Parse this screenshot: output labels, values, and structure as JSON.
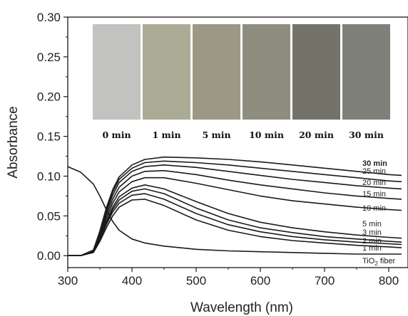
{
  "chart_data": {
    "type": "line",
    "xlabel": "Wavelength (nm)",
    "ylabel": "Absorbance",
    "xlim": [
      300,
      830
    ],
    "ylim": [
      -0.015,
      0.3
    ],
    "x_ticks": [
      300,
      400,
      500,
      600,
      700,
      800
    ],
    "y_ticks": [
      0.0,
      0.05,
      0.1,
      0.15,
      0.2,
      0.25,
      0.3
    ],
    "x_tick_labels": [
      "300",
      "400",
      "500",
      "600",
      "700",
      "800"
    ],
    "y_tick_labels": [
      "0.00",
      "0.05",
      "0.10",
      "0.15",
      "0.20",
      "0.25",
      "0.30"
    ],
    "grid": false,
    "line_color": "#1a1a1a",
    "x": [
      300,
      320,
      340,
      350,
      360,
      370,
      380,
      400,
      420,
      450,
      500,
      550,
      600,
      650,
      700,
      750,
      800,
      820
    ],
    "series": [
      {
        "name": "TiO2 fiber",
        "label_main": "TiO",
        "label_sub": "2",
        "label_tail": " fiber",
        "values": [
          0.112,
          0.105,
          0.09,
          0.075,
          0.058,
          0.043,
          0.032,
          0.021,
          0.016,
          0.012,
          0.008,
          0.006,
          0.005,
          0.004,
          0.003,
          0.002,
          0.002,
          0.002
        ]
      },
      {
        "name": "1 min",
        "label_main": "1 min",
        "values": [
          0.0,
          0.0,
          0.004,
          0.018,
          0.035,
          0.05,
          0.061,
          0.07,
          0.071,
          0.063,
          0.045,
          0.032,
          0.024,
          0.019,
          0.016,
          0.013,
          0.011,
          0.01
        ]
      },
      {
        "name": "2 min",
        "label_main": "2 min",
        "values": [
          0.0,
          0.0,
          0.005,
          0.02,
          0.039,
          0.055,
          0.066,
          0.076,
          0.078,
          0.071,
          0.053,
          0.039,
          0.03,
          0.024,
          0.02,
          0.017,
          0.015,
          0.014
        ]
      },
      {
        "name": "3 min",
        "label_main": "3 min",
        "values": [
          0.0,
          0.0,
          0.005,
          0.021,
          0.041,
          0.058,
          0.07,
          0.081,
          0.084,
          0.078,
          0.06,
          0.045,
          0.035,
          0.029,
          0.024,
          0.021,
          0.018,
          0.017
        ]
      },
      {
        "name": "5 min",
        "label_main": "5 min",
        "values": [
          0.0,
          0.0,
          0.005,
          0.022,
          0.043,
          0.061,
          0.074,
          0.085,
          0.089,
          0.084,
          0.068,
          0.053,
          0.042,
          0.035,
          0.03,
          0.026,
          0.023,
          0.022
        ]
      },
      {
        "name": "10 min",
        "label_main": "10 min",
        "values": [
          0.0,
          0.0,
          0.006,
          0.024,
          0.047,
          0.066,
          0.08,
          0.093,
          0.098,
          0.098,
          0.091,
          0.083,
          0.075,
          0.069,
          0.065,
          0.061,
          0.058,
          0.057
        ]
      },
      {
        "name": "15 min",
        "label_main": "15 min",
        "values": [
          0.0,
          0.0,
          0.006,
          0.026,
          0.051,
          0.071,
          0.086,
          0.1,
          0.106,
          0.107,
          0.102,
          0.095,
          0.089,
          0.084,
          0.079,
          0.075,
          0.072,
          0.071
        ]
      },
      {
        "name": "20 min",
        "label_main": "20 min",
        "values": [
          0.0,
          0.0,
          0.007,
          0.028,
          0.055,
          0.076,
          0.092,
          0.106,
          0.112,
          0.114,
          0.111,
          0.106,
          0.101,
          0.096,
          0.092,
          0.088,
          0.085,
          0.084
        ]
      },
      {
        "name": "25 min",
        "label_main": "25 min",
        "values": [
          0.0,
          0.0,
          0.007,
          0.03,
          0.058,
          0.08,
          0.096,
          0.11,
          0.117,
          0.119,
          0.117,
          0.114,
          0.11,
          0.106,
          0.102,
          0.098,
          0.094,
          0.093
        ]
      },
      {
        "name": "30 min",
        "label_main": "30 min",
        "values": [
          0.0,
          0.0,
          0.007,
          0.031,
          0.06,
          0.083,
          0.099,
          0.114,
          0.121,
          0.124,
          0.123,
          0.121,
          0.118,
          0.114,
          0.11,
          0.106,
          0.102,
          0.101
        ]
      }
    ]
  },
  "inset": {
    "swatches": [
      {
        "label": "0 min",
        "color": "#c2c2c0"
      },
      {
        "label": "1 min",
        "color": "#abab95"
      },
      {
        "label": "5 min",
        "color": "#9b9985"
      },
      {
        "label": "10 min",
        "color": "#8e8d80"
      },
      {
        "label": "20 min",
        "color": "#73736a"
      },
      {
        "label": "30 min",
        "color": "#80807a"
      }
    ]
  }
}
